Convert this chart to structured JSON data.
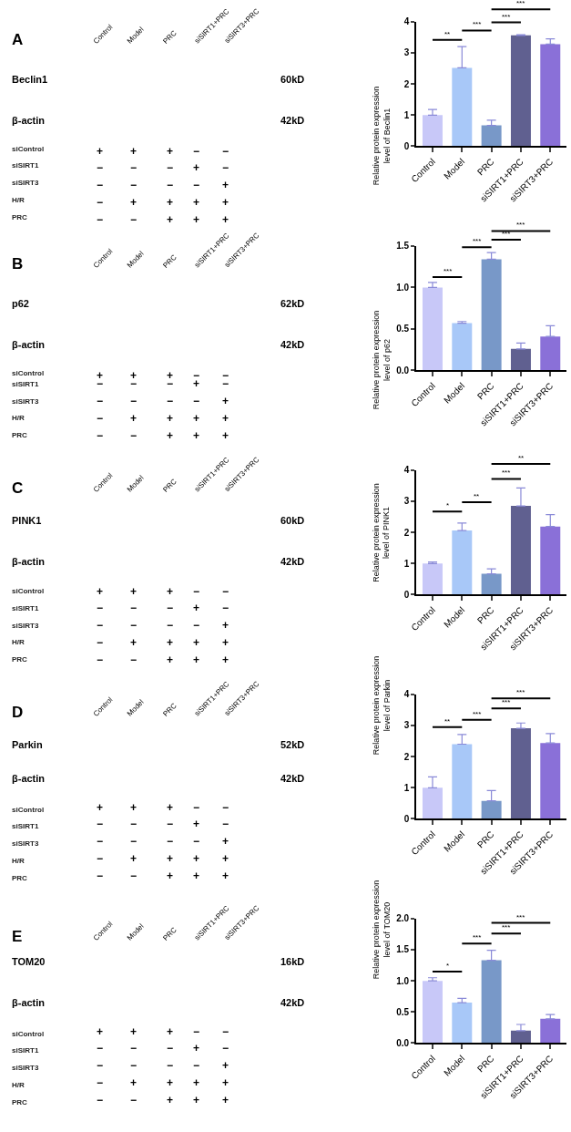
{
  "chart_data": [
    {
      "type": "other",
      "title": "A",
      "categories": [
        "Control",
        "Model",
        "PRC",
        "siSIRT1+PRC",
        "siSIRT3+PRC"
      ],
      "y_categories": [
        "Beclin1",
        "β-actin",
        "siControl",
        "siSIRT1",
        "siSIRT3",
        "H/R",
        "PRC"
      ],
      "y2_categories": [
        "60kD",
        "42kD"
      ],
      "cell_labels": [
        [
          "+",
          "+",
          "+",
          "−",
          "−"
        ],
        [
          "−",
          "−",
          "−",
          "+",
          "−"
        ],
        [
          "−",
          "−",
          "−",
          "−",
          "+"
        ],
        [
          "−",
          "+",
          "+",
          "+",
          "+"
        ],
        [
          "−",
          "−",
          "+",
          "+",
          "+"
        ]
      ]
    },
    {
      "type": "bar",
      "categories": [
        "Control",
        "Model",
        "PRC",
        "siSIRT1+PRC",
        "siSIRT3+PRC"
      ],
      "values": [
        1.0,
        2.52,
        0.67,
        3.56,
        3.28
      ],
      "colors": [
        "#c8c8f8",
        "#a8c8f8",
        "#7898c8",
        "#606090",
        "#8a70d8"
      ],
      "errors": [
        [
          1.0,
          1.18
        ],
        [
          2.52,
          3.2
        ],
        [
          0.67,
          0.84
        ],
        [
          3.56,
          3.58
        ],
        [
          3.28,
          3.45
        ]
      ],
      "ylabel": "Relative protein expression\nlevel of Beclin1",
      "ylim": [
        0,
        4
      ],
      "yticks": [
        0,
        1,
        2,
        3,
        4
      ],
      "annotations": [
        "**",
        "***",
        "***",
        "***"
      ]
    },
    {
      "type": "other",
      "title": "B",
      "categories": [
        "Control",
        "Model",
        "PRC",
        "siSIRT1+PRC",
        "siSIRT3+PRC"
      ],
      "y_categories": [
        "p62",
        "β-actin",
        "siControl",
        "siSIRT1",
        "siSIRT3",
        "H/R",
        "PRC"
      ],
      "y2_categories": [
        "62kD",
        "42kD"
      ],
      "cell_labels": [
        [
          "+",
          "+",
          "+",
          "−",
          "−"
        ],
        [
          "−",
          "−",
          "−",
          "+",
          "−"
        ],
        [
          "−",
          "−",
          "−",
          "−",
          "+"
        ],
        [
          "−",
          "+",
          "+",
          "+",
          "+"
        ],
        [
          "−",
          "−",
          "+",
          "+",
          "+"
        ]
      ]
    },
    {
      "type": "bar",
      "categories": [
        "Control",
        "Model",
        "PRC",
        "siSIRT1+PRC",
        "siSIRT3+PRC"
      ],
      "values": [
        1.0,
        0.57,
        1.34,
        0.26,
        0.41
      ],
      "colors": [
        "#c8c8f8",
        "#a8c8f8",
        "#7898c8",
        "#606090",
        "#8a70d8"
      ],
      "errors": [
        [
          1.0,
          1.06
        ],
        [
          0.57,
          0.59
        ],
        [
          1.34,
          1.42
        ],
        [
          0.26,
          0.33
        ],
        [
          0.41,
          0.54
        ]
      ],
      "ylabel": "Relative protein expression\nlevel of p62",
      "ylim": [
        0,
        1.5
      ],
      "yticks": [
        {
          "value": 0,
          "label": "0.0"
        },
        {
          "value": 0.5,
          "label": "0.5"
        },
        {
          "value": 1,
          "label": "1.0"
        },
        {
          "value": 1.5,
          "label": "1.5"
        }
      ],
      "annotations": [
        "***",
        "***",
        "***",
        "***"
      ]
    },
    {
      "type": "other",
      "title": "C",
      "categories": [
        "Control",
        "Model",
        "PRC",
        "siSIRT1+PRC",
        "siSIRT3+PRC"
      ],
      "y_categories": [
        "PINK1",
        "β-actin",
        "siControl",
        "siSIRT1",
        "siSIRT3",
        "H/R",
        "PRC"
      ],
      "y2_categories": [
        "60kD",
        "42kD"
      ],
      "cell_labels": [
        [
          "+",
          "+",
          "+",
          "−",
          "−"
        ],
        [
          "−",
          "−",
          "−",
          "+",
          "−"
        ],
        [
          "−",
          "−",
          "−",
          "−",
          "+"
        ],
        [
          "−",
          "+",
          "+",
          "+",
          "+"
        ],
        [
          "−",
          "−",
          "+",
          "+",
          "+"
        ]
      ]
    },
    {
      "type": "bar",
      "categories": [
        "Control",
        "Model",
        "PRC",
        "siSIRT1+PRC",
        "siSIRT3+PRC"
      ],
      "values": [
        1.0,
        2.06,
        0.67,
        2.85,
        2.19
      ],
      "colors": [
        "#c8c8f8",
        "#a8c8f8",
        "#7898c8",
        "#606090",
        "#8a70d8"
      ],
      "errors": [
        [
          1.0,
          1.05
        ],
        [
          2.06,
          2.3
        ],
        [
          0.67,
          0.83
        ],
        [
          2.85,
          3.43
        ],
        [
          2.19,
          2.57
        ]
      ],
      "ylabel": "Relative protein expression\nlevel of PINK1",
      "ylim": [
        0,
        4
      ],
      "yticks": [
        0,
        1,
        2,
        3,
        4
      ],
      "annotations": [
        "*",
        "**",
        "***",
        "**"
      ]
    },
    {
      "type": "other",
      "title": "D",
      "categories": [
        "Control",
        "Model",
        "PRC",
        "siSIRT1+PRC",
        "siSIRT3+PRC"
      ],
      "y_categories": [
        "Parkin",
        "β-actin",
        "siControl",
        "siSIRT1",
        "siSIRT3",
        "H/R",
        "PRC"
      ],
      "y2_categories": [
        "52kD",
        "42kD"
      ],
      "cell_labels": [
        [
          "+",
          "+",
          "+",
          "−",
          "−"
        ],
        [
          "−",
          "−",
          "−",
          "+",
          "−"
        ],
        [
          "−",
          "−",
          "−",
          "−",
          "+"
        ],
        [
          "−",
          "+",
          "+",
          "+",
          "+"
        ],
        [
          "−",
          "−",
          "+",
          "+",
          "+"
        ]
      ]
    },
    {
      "type": "bar",
      "categories": [
        "Control",
        "Model",
        "PRC",
        "siSIRT1+PRC",
        "siSIRT3+PRC"
      ],
      "values": [
        1.0,
        2.4,
        0.58,
        2.91,
        2.44
      ],
      "colors": [
        "#c8c8f8",
        "#a8c8f8",
        "#7898c8",
        "#606090",
        "#8a70d8"
      ],
      "errors": [
        [
          1.0,
          1.35
        ],
        [
          2.4,
          2.71
        ],
        [
          0.58,
          0.91
        ],
        [
          2.91,
          3.08
        ],
        [
          2.44,
          2.74
        ]
      ],
      "ylabel": "Relative protein expression\nlevel of Parkin",
      "ylim": [
        0,
        4
      ],
      "yticks": [
        0,
        1,
        2,
        3,
        4
      ],
      "annotations": [
        "**",
        "***",
        "***",
        "***"
      ]
    },
    {
      "type": "other",
      "title": "E",
      "categories": [
        "Control",
        "Model",
        "PRC",
        "siSIRT1+PRC",
        "siSIRT3+PRC"
      ],
      "y_categories": [
        "TOM20",
        "β-actin",
        "siControl",
        "siSIRT1",
        "siSIRT3",
        "H/R",
        "PRC"
      ],
      "y2_categories": [
        "16kD",
        "42kD"
      ],
      "cell_labels": [
        [
          "+",
          "+",
          "+",
          "−",
          "−"
        ],
        [
          "−",
          "−",
          "−",
          "+",
          "−"
        ],
        [
          "−",
          "−",
          "−",
          "−",
          "+"
        ],
        [
          "−",
          "+",
          "+",
          "+",
          "+"
        ],
        [
          "−",
          "−",
          "+",
          "+",
          "+"
        ]
      ]
    },
    {
      "type": "bar",
      "categories": [
        "Control",
        "Model",
        "PRC",
        "siSIRT1+PRC",
        "siSIRT3+PRC"
      ],
      "values": [
        1.0,
        0.65,
        1.33,
        0.2,
        0.39
      ],
      "colors": [
        "#c8c8f8",
        "#a8c8f8",
        "#7898c8",
        "#606090",
        "#8a70d8"
      ],
      "errors": [
        [
          1.0,
          1.05
        ],
        [
          0.65,
          0.72
        ],
        [
          1.33,
          1.49
        ],
        [
          0.2,
          0.3
        ],
        [
          0.39,
          0.46
        ]
      ],
      "ylabel": "Relative protein expression\nlevel of TOM20",
      "ylim": [
        0,
        2
      ],
      "yticks": [
        {
          "value": 0,
          "label": "0.0"
        },
        {
          "value": 0.5,
          "label": "0.5"
        },
        {
          "value": 1,
          "label": "1.0"
        },
        {
          "value": 1.5,
          "label": "1.5"
        },
        {
          "value": 2,
          "label": "2.0"
        }
      ],
      "annotations": [
        "*",
        "***",
        "***",
        "***"
      ]
    }
  ]
}
